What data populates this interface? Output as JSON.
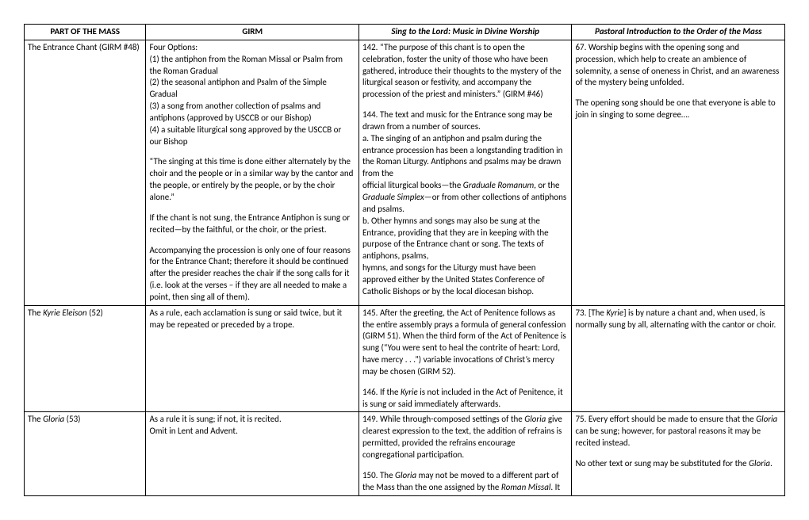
{
  "headers": {
    "col0": "PART OF THE MASS",
    "col1": "GIRM",
    "col2_pre": "Sing to the Lord: Music in Divine Worship",
    "col3_pre": "Pastoral Introduction to the Order of the Mass"
  },
  "rows": [
    {
      "part_pre": "The Entrance Chant (GIRM #48)",
      "girm": {
        "p1": "Four Options:",
        "p2": "(1) the antiphon from the Roman Missal or Psalm from the Roman Gradual",
        "p3": "(2) the seasonal antiphon and Psalm of the Simple Gradual",
        "p4": "(3) a song from another collection of psalms and antiphons (approved by USCCB or our Bishop)",
        "p5": "(4) a suitable liturgical song approved by the USCCB or our Bishop",
        "p6": "“The singing at this time is done either alternately by the choir and the people or in a similar way by the cantor and the people, or entirely by the people, or by the choir alone.”",
        "p7": "If the chant is not sung, the Entrance Antiphon is sung or recited—by the faithful, or the choir, or the priest.",
        "p8": "Accompanying the procession is only one of four reasons for the Entrance Chant; therefore it should be continued after the presider reaches the chair if the song calls for it (i.e. look at the verses – if they are all needed to make a point, then sing all of them)."
      },
      "sing": {
        "p1": "142. “The purpose of this chant is to open the celebration, foster the unity of those who have been gathered, introduce their thoughts to the mystery of the liturgical season or festivity, and accompany the procession of the priest and ministers.” (GIRM #46)",
        "p2": "144. The text and music for the Entrance song may be drawn from a number of sources.",
        "p3": "a. The singing of an antiphon and psalm during the entrance procession has been a longstanding tradition in the Roman Liturgy. Antiphons and psalms may be drawn from the",
        "p4a": "official liturgical books—the ",
        "p4b": "Graduale Romanum",
        "p4c": ", or the ",
        "p4d": "Graduale Simplex",
        "p4e": "—or from other collections of antiphons and psalms.",
        "p5": "b. Other hymns and songs may also be sung at the Entrance, providing that they are in keeping with the purpose of the Entrance chant or song. The texts of antiphons, psalms,",
        "p6": "hymns, and songs for the Liturgy must have been approved either by the United States Conference of Catholic Bishops or by the local diocesan bishop."
      },
      "pastoral": {
        "p1": "67. Worship begins with the opening song and procession, which help to create an ambience of solemnity, a sense of oneness in Christ, and an awareness of the mystery being unfolded.",
        "p2": "The opening song should be one that everyone is able to join in singing to some degree…."
      }
    },
    {
      "part_a": "The ",
      "part_b": "Kyrie Eleison",
      "part_c": " (52)",
      "girm": {
        "p1": "As a rule, each acclamation is sung or said twice, but it may be repeated or preceded by a trope."
      },
      "sing": {
        "p1": "145. After the greeting, the Act of Penitence follows as the entire assembly prays a formula of general confession (GIRM 51). When the third form of the Act of Penitence is sung (“You were sent to heal the contrite of heart: Lord, have mercy . . .”) variable invocations of Christ’s mercy may be chosen (GIRM 52).",
        "p2a": "146. If the ",
        "p2b": "Kyrie",
        "p2c": " is not included in the Act of Penitence, it is sung or said immediately afterwards."
      },
      "pastoral": {
        "p1a": "73. [The ",
        "p1b": "Kyrie",
        "p1c": "] is by nature a chant and, when used, is normally sung by all, alternating with the cantor or choir."
      }
    },
    {
      "part_a": "The ",
      "part_b": "Gloria",
      "part_c": " (53)",
      "girm": {
        "p1": "As a rule it is sung; if not, it is recited.",
        "p2": "Omit in Lent and Advent."
      },
      "sing": {
        "p1a": "149. While through-composed settings of the ",
        "p1b": "Gloria",
        "p1c": " give clearest expression to the text, the addition of refrains is permitted, provided the refrains encourage congregational participation.",
        "p2a": "150. The ",
        "p2b": "Gloria",
        "p2c": " may not be moved to a different part of the Mass than the one assigned by the ",
        "p2d": "Roman Missal",
        "p2e": ". It"
      },
      "pastoral": {
        "p1a": "75. Every effort should be made to ensure that the ",
        "p1b": "Gloria",
        "p1c": " can be sung; however, for pastoral reasons it may be recited instead.",
        "p2a": "No other text or sung may be substituted for the ",
        "p2b": "Gloria",
        "p2c": "."
      }
    }
  ]
}
